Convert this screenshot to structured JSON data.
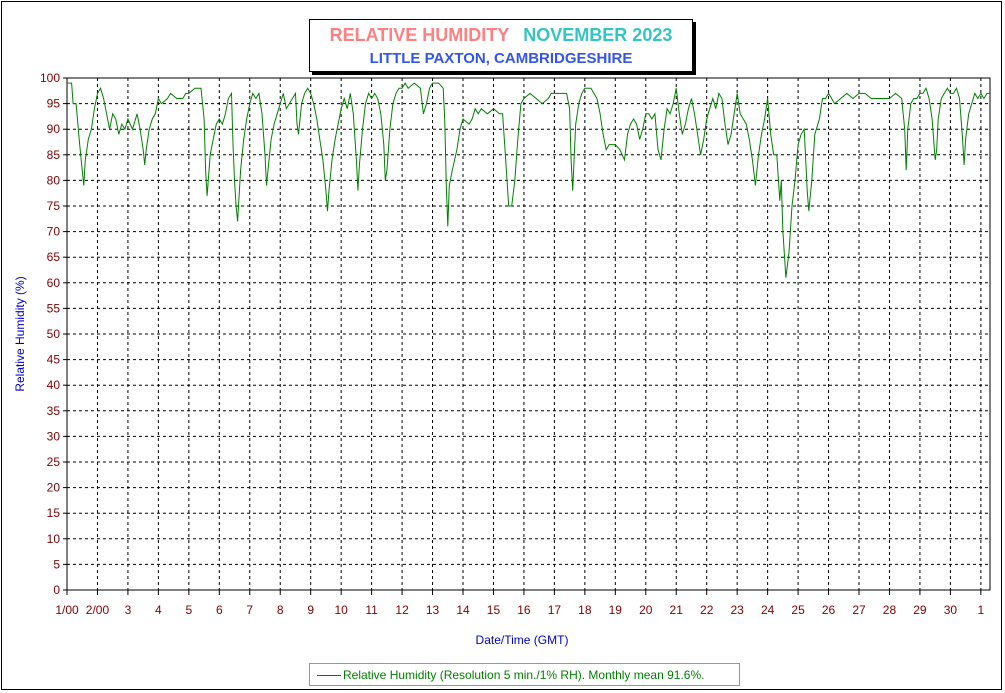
{
  "header": {
    "title": "RELATIVE HUMIDITY",
    "month": "NOVEMBER 2023",
    "subtitle": "LITTLE PAXTON, CAMBRIDGESHIRE"
  },
  "legend": {
    "text": "Relative Humidity (Resolution 5 min./1% RH). Monthly mean 91.6%."
  },
  "chart_data": {
    "type": "line",
    "xlabel": "Date/Time (GMT)",
    "ylabel": "Relative Humidity (%)",
    "ylim": [
      0,
      100
    ],
    "xlim": [
      1,
      31.3
    ],
    "grid": true,
    "y_ticks": [
      0,
      5,
      10,
      15,
      20,
      25,
      30,
      35,
      40,
      45,
      50,
      55,
      60,
      65,
      70,
      75,
      80,
      85,
      90,
      95,
      100
    ],
    "x_ticks": [
      {
        "x": 1,
        "label": "1/00"
      },
      {
        "x": 2,
        "label": "2/00"
      },
      {
        "x": 3,
        "label": "3"
      },
      {
        "x": 4,
        "label": "4"
      },
      {
        "x": 5,
        "label": "5"
      },
      {
        "x": 6,
        "label": "6"
      },
      {
        "x": 7,
        "label": "7"
      },
      {
        "x": 8,
        "label": "8"
      },
      {
        "x": 9,
        "label": "9"
      },
      {
        "x": 10,
        "label": "10"
      },
      {
        "x": 11,
        "label": "11"
      },
      {
        "x": 12,
        "label": "12"
      },
      {
        "x": 13,
        "label": "13"
      },
      {
        "x": 14,
        "label": "14"
      },
      {
        "x": 15,
        "label": "15"
      },
      {
        "x": 16,
        "label": "16"
      },
      {
        "x": 17,
        "label": "17"
      },
      {
        "x": 18,
        "label": "18"
      },
      {
        "x": 19,
        "label": "19"
      },
      {
        "x": 20,
        "label": "20"
      },
      {
        "x": 21,
        "label": "21"
      },
      {
        "x": 22,
        "label": "22"
      },
      {
        "x": 23,
        "label": "23"
      },
      {
        "x": 24,
        "label": "24"
      },
      {
        "x": 25,
        "label": "25"
      },
      {
        "x": 26,
        "label": "26"
      },
      {
        "x": 27,
        "label": "27"
      },
      {
        "x": 28,
        "label": "28"
      },
      {
        "x": 29,
        "label": "29"
      },
      {
        "x": 30,
        "label": "30"
      },
      {
        "x": 31,
        "label": "1"
      }
    ],
    "series": [
      {
        "color": "#008000",
        "points": [
          [
            1.0,
            99
          ],
          [
            1.15,
            99
          ],
          [
            1.2,
            95
          ],
          [
            1.3,
            95
          ],
          [
            1.4,
            88
          ],
          [
            1.45,
            85
          ],
          [
            1.5,
            82
          ],
          [
            1.55,
            79
          ],
          [
            1.6,
            84
          ],
          [
            1.7,
            88
          ],
          [
            1.8,
            90
          ],
          [
            1.9,
            94
          ],
          [
            2.0,
            97
          ],
          [
            2.1,
            98
          ],
          [
            2.2,
            96
          ],
          [
            2.3,
            93
          ],
          [
            2.4,
            90
          ],
          [
            2.5,
            93
          ],
          [
            2.6,
            92
          ],
          [
            2.7,
            89
          ],
          [
            2.8,
            91
          ],
          [
            2.9,
            90
          ],
          [
            3.0,
            92
          ],
          [
            3.15,
            90
          ],
          [
            3.3,
            93
          ],
          [
            3.4,
            90
          ],
          [
            3.5,
            86
          ],
          [
            3.55,
            83
          ],
          [
            3.6,
            86
          ],
          [
            3.7,
            90
          ],
          [
            3.8,
            92
          ],
          [
            3.9,
            93
          ],
          [
            4.0,
            96
          ],
          [
            4.1,
            95
          ],
          [
            4.3,
            96
          ],
          [
            4.4,
            97
          ],
          [
            4.6,
            96
          ],
          [
            4.8,
            96
          ],
          [
            4.9,
            97
          ],
          [
            5.0,
            97
          ],
          [
            5.2,
            98
          ],
          [
            5.4,
            98
          ],
          [
            5.5,
            92
          ],
          [
            5.55,
            82
          ],
          [
            5.6,
            77
          ],
          [
            5.7,
            85
          ],
          [
            5.8,
            88
          ],
          [
            5.9,
            91
          ],
          [
            6.0,
            92
          ],
          [
            6.1,
            91
          ],
          [
            6.2,
            93
          ],
          [
            6.3,
            96
          ],
          [
            6.4,
            97
          ],
          [
            6.45,
            87
          ],
          [
            6.5,
            80
          ],
          [
            6.55,
            75
          ],
          [
            6.6,
            72
          ],
          [
            6.7,
            82
          ],
          [
            6.8,
            88
          ],
          [
            6.9,
            92
          ],
          [
            7.0,
            95
          ],
          [
            7.1,
            97
          ],
          [
            7.2,
            96
          ],
          [
            7.3,
            97
          ],
          [
            7.4,
            93
          ],
          [
            7.5,
            85
          ],
          [
            7.55,
            79
          ],
          [
            7.6,
            82
          ],
          [
            7.7,
            88
          ],
          [
            7.8,
            91
          ],
          [
            7.9,
            93
          ],
          [
            8.0,
            95
          ],
          [
            8.1,
            97
          ],
          [
            8.2,
            94
          ],
          [
            8.3,
            95
          ],
          [
            8.4,
            96
          ],
          [
            8.5,
            97
          ],
          [
            8.55,
            91
          ],
          [
            8.6,
            89
          ],
          [
            8.7,
            95
          ],
          [
            8.8,
            97
          ],
          [
            8.9,
            98
          ],
          [
            9.0,
            97
          ],
          [
            9.1,
            95
          ],
          [
            9.2,
            92
          ],
          [
            9.3,
            88
          ],
          [
            9.4,
            84
          ],
          [
            9.5,
            78
          ],
          [
            9.55,
            74
          ],
          [
            9.6,
            78
          ],
          [
            9.7,
            84
          ],
          [
            9.8,
            88
          ],
          [
            9.9,
            91
          ],
          [
            10.0,
            94
          ],
          [
            10.1,
            96
          ],
          [
            10.2,
            94
          ],
          [
            10.3,
            97
          ],
          [
            10.4,
            93
          ],
          [
            10.5,
            84
          ],
          [
            10.55,
            78
          ],
          [
            10.6,
            83
          ],
          [
            10.7,
            90
          ],
          [
            10.8,
            95
          ],
          [
            10.9,
            97
          ],
          [
            11.0,
            96
          ],
          [
            11.1,
            97
          ],
          [
            11.2,
            96
          ],
          [
            11.3,
            93
          ],
          [
            11.4,
            87
          ],
          [
            11.45,
            80
          ],
          [
            11.5,
            82
          ],
          [
            11.6,
            90
          ],
          [
            11.7,
            95
          ],
          [
            11.8,
            97
          ],
          [
            11.9,
            98
          ],
          [
            12.0,
            98
          ],
          [
            12.1,
            99
          ],
          [
            12.2,
            98
          ],
          [
            12.4,
            99
          ],
          [
            12.6,
            98
          ],
          [
            12.7,
            93
          ],
          [
            12.8,
            95
          ],
          [
            12.9,
            98
          ],
          [
            13.0,
            99
          ],
          [
            13.2,
            99
          ],
          [
            13.35,
            98
          ],
          [
            13.4,
            92
          ],
          [
            13.45,
            79
          ],
          [
            13.5,
            71
          ],
          [
            13.55,
            79
          ],
          [
            13.65,
            82
          ],
          [
            13.8,
            86
          ],
          [
            13.9,
            90
          ],
          [
            14.0,
            92
          ],
          [
            14.2,
            91
          ],
          [
            14.3,
            92
          ],
          [
            14.4,
            94
          ],
          [
            14.5,
            93
          ],
          [
            14.6,
            94
          ],
          [
            14.8,
            93
          ],
          [
            15.0,
            94
          ],
          [
            15.2,
            93
          ],
          [
            15.3,
            93
          ],
          [
            15.4,
            84
          ],
          [
            15.5,
            75
          ],
          [
            15.6,
            75
          ],
          [
            15.7,
            80
          ],
          [
            15.8,
            88
          ],
          [
            15.9,
            95
          ],
          [
            16.0,
            96
          ],
          [
            16.2,
            97
          ],
          [
            16.4,
            96
          ],
          [
            16.6,
            95
          ],
          [
            16.8,
            96
          ],
          [
            16.9,
            97
          ],
          [
            17.0,
            97
          ],
          [
            17.2,
            97
          ],
          [
            17.4,
            97
          ],
          [
            17.5,
            94
          ],
          [
            17.55,
            84
          ],
          [
            17.6,
            78
          ],
          [
            17.7,
            91
          ],
          [
            17.8,
            95
          ],
          [
            17.9,
            97
          ],
          [
            18.0,
            98
          ],
          [
            18.2,
            98
          ],
          [
            18.4,
            96
          ],
          [
            18.5,
            93
          ],
          [
            18.6,
            89
          ],
          [
            18.7,
            86
          ],
          [
            18.8,
            87
          ],
          [
            18.9,
            87
          ],
          [
            19.0,
            87
          ],
          [
            19.15,
            86
          ],
          [
            19.3,
            84
          ],
          [
            19.4,
            89
          ],
          [
            19.5,
            91
          ],
          [
            19.6,
            92
          ],
          [
            19.7,
            91
          ],
          [
            19.8,
            88
          ],
          [
            19.9,
            90
          ],
          [
            20.0,
            93
          ],
          [
            20.1,
            93
          ],
          [
            20.2,
            92
          ],
          [
            20.3,
            93
          ],
          [
            20.4,
            86
          ],
          [
            20.5,
            84
          ],
          [
            20.6,
            90
          ],
          [
            20.7,
            94
          ],
          [
            20.8,
            93
          ],
          [
            20.9,
            95
          ],
          [
            21.0,
            98
          ],
          [
            21.1,
            93
          ],
          [
            21.2,
            89
          ],
          [
            21.3,
            91
          ],
          [
            21.4,
            94
          ],
          [
            21.5,
            96
          ],
          [
            21.6,
            93
          ],
          [
            21.7,
            89
          ],
          [
            21.8,
            85
          ],
          [
            21.9,
            88
          ],
          [
            22.0,
            92
          ],
          [
            22.1,
            94
          ],
          [
            22.2,
            96
          ],
          [
            22.3,
            94
          ],
          [
            22.4,
            97
          ],
          [
            22.5,
            96
          ],
          [
            22.6,
            91
          ],
          [
            22.7,
            87
          ],
          [
            22.8,
            89
          ],
          [
            22.9,
            93
          ],
          [
            23.0,
            97
          ],
          [
            23.1,
            93
          ],
          [
            23.2,
            92
          ],
          [
            23.3,
            91
          ],
          [
            23.4,
            88
          ],
          [
            23.5,
            84
          ],
          [
            23.6,
            79
          ],
          [
            23.7,
            85
          ],
          [
            23.8,
            89
          ],
          [
            23.9,
            92
          ],
          [
            24.0,
            96
          ],
          [
            24.1,
            89
          ],
          [
            24.2,
            85
          ],
          [
            24.3,
            85
          ],
          [
            24.4,
            76
          ],
          [
            24.45,
            80
          ],
          [
            24.5,
            70
          ],
          [
            24.6,
            61
          ],
          [
            24.7,
            66
          ],
          [
            24.8,
            75
          ],
          [
            24.9,
            80
          ],
          [
            25.0,
            87
          ],
          [
            25.1,
            89
          ],
          [
            25.2,
            90
          ],
          [
            25.3,
            78
          ],
          [
            25.35,
            74
          ],
          [
            25.45,
            80
          ],
          [
            25.55,
            89
          ],
          [
            25.7,
            92
          ],
          [
            25.8,
            96
          ],
          [
            25.9,
            96
          ],
          [
            26.0,
            97
          ],
          [
            26.1,
            96
          ],
          [
            26.2,
            95
          ],
          [
            26.4,
            96
          ],
          [
            26.6,
            97
          ],
          [
            26.8,
            96
          ],
          [
            27.0,
            97
          ],
          [
            27.2,
            97
          ],
          [
            27.4,
            96
          ],
          [
            27.6,
            96
          ],
          [
            27.8,
            96
          ],
          [
            28.0,
            96
          ],
          [
            28.2,
            97
          ],
          [
            28.4,
            96
          ],
          [
            28.5,
            90
          ],
          [
            28.55,
            82
          ],
          [
            28.6,
            90
          ],
          [
            28.7,
            95
          ],
          [
            28.8,
            96
          ],
          [
            28.9,
            96
          ],
          [
            29.0,
            97
          ],
          [
            29.1,
            97
          ],
          [
            29.2,
            98
          ],
          [
            29.3,
            96
          ],
          [
            29.4,
            92
          ],
          [
            29.5,
            84
          ],
          [
            29.55,
            86
          ],
          [
            29.6,
            92
          ],
          [
            29.7,
            96
          ],
          [
            29.8,
            97
          ],
          [
            29.9,
            98
          ],
          [
            30.0,
            97
          ],
          [
            30.1,
            97
          ],
          [
            30.2,
            98
          ],
          [
            30.3,
            96
          ],
          [
            30.4,
            88
          ],
          [
            30.45,
            83
          ],
          [
            30.5,
            88
          ],
          [
            30.6,
            93
          ],
          [
            30.7,
            95
          ],
          [
            30.8,
            97
          ],
          [
            30.9,
            96
          ],
          [
            31.0,
            97
          ],
          [
            31.1,
            96
          ],
          [
            31.2,
            97
          ],
          [
            31.3,
            97
          ]
        ]
      }
    ]
  }
}
